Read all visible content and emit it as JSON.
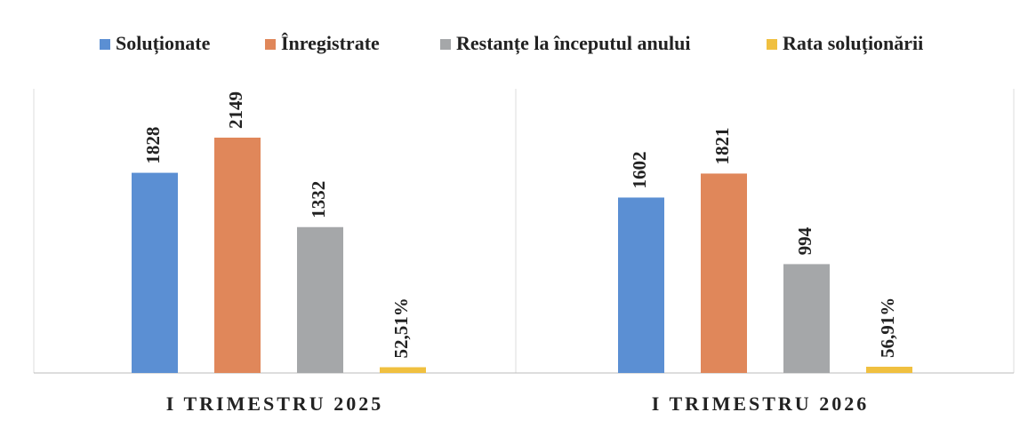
{
  "chart_data": {
    "type": "bar",
    "categories": [
      "I TRIMESTRU 2025",
      "I TRIMESTRU 2026"
    ],
    "series": [
      {
        "name": "Soluționate",
        "color": "#5b8fd3",
        "values": [
          1828,
          1602
        ]
      },
      {
        "name": "Înregistrate",
        "color": "#e0875a",
        "values": [
          2149,
          1821
        ]
      },
      {
        "name": "Restanțe la începutul anului",
        "color": "#a5a7a9",
        "values": [
          1332,
          994
        ]
      },
      {
        "name": "Rata soluționării",
        "color": "#f0c040",
        "values": [
          52.51,
          56.91
        ],
        "value_labels": [
          "52,51%",
          "56,91%"
        ]
      }
    ]
  }
}
